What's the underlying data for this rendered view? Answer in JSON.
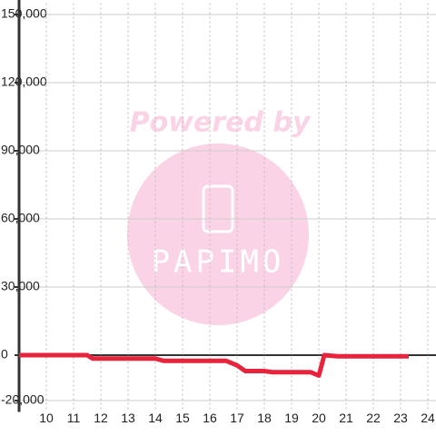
{
  "chart_data": {
    "type": "line",
    "x": [
      9,
      11.5,
      11.7,
      14,
      14.3,
      16.3,
      16.6,
      17,
      17.3,
      18,
      18.3,
      19.3,
      19.7,
      20,
      20.2,
      20.7,
      23.3
    ],
    "series": [
      {
        "color": "#e8243c",
        "values": [
          0,
          0,
          -1500,
          -1500,
          -2500,
          -2500,
          -2500,
          -4500,
          -7000,
          -7000,
          -7500,
          -7500,
          -7500,
          -9000,
          0,
          -500,
          -500
        ]
      }
    ],
    "xlim": [
      9,
      24.3
    ],
    "xticks": [
      10,
      11,
      12,
      13,
      14,
      15,
      16,
      17,
      18,
      19,
      20,
      21,
      22,
      23,
      24
    ],
    "ylim": [
      -25000,
      155000
    ],
    "yticks": [
      {
        "value": -20000,
        "label": "-20,000"
      },
      0,
      {
        "value": 30000,
        "label": "30,000"
      },
      {
        "value": 60000,
        "label": "60,000"
      },
      {
        "value": 90000,
        "label": "90,000"
      },
      {
        "value": 120000,
        "label": "120,000"
      },
      {
        "value": 150000,
        "label": "150,000"
      }
    ],
    "grid": true,
    "watermark": {
      "line1": "Powered by",
      "line2": "PAPIMO"
    }
  }
}
